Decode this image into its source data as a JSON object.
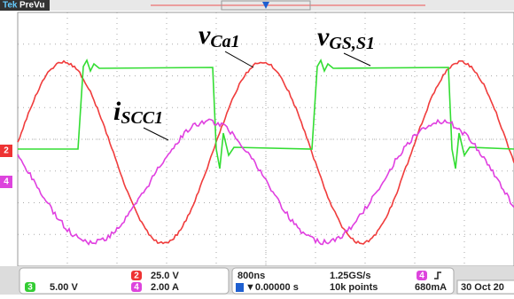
{
  "header": {
    "brand": "Tek",
    "mode": "PreVu"
  },
  "annotations": [
    {
      "main": "v",
      "sub": "Ca1"
    },
    {
      "main": "v",
      "sub": "GS,S1"
    },
    {
      "main": "i",
      "sub": "SCC1"
    }
  ],
  "markers": {
    "ch2": "2",
    "ch4": "4"
  },
  "status": {
    "ch3": {
      "number": "3",
      "scale": "5.00 V"
    },
    "ch2": {
      "number": "2",
      "scale": "25.0 V"
    },
    "ch4": {
      "number": "4",
      "scale": "2.00 A"
    },
    "timebase": "800ns",
    "trigger_position": "▼0.00000 s",
    "sample_rate": "1.25GS/s",
    "record_length": "10k points",
    "trigger_source": "4",
    "trigger_level": "680mA",
    "date": "30 Oct 20"
  }
}
